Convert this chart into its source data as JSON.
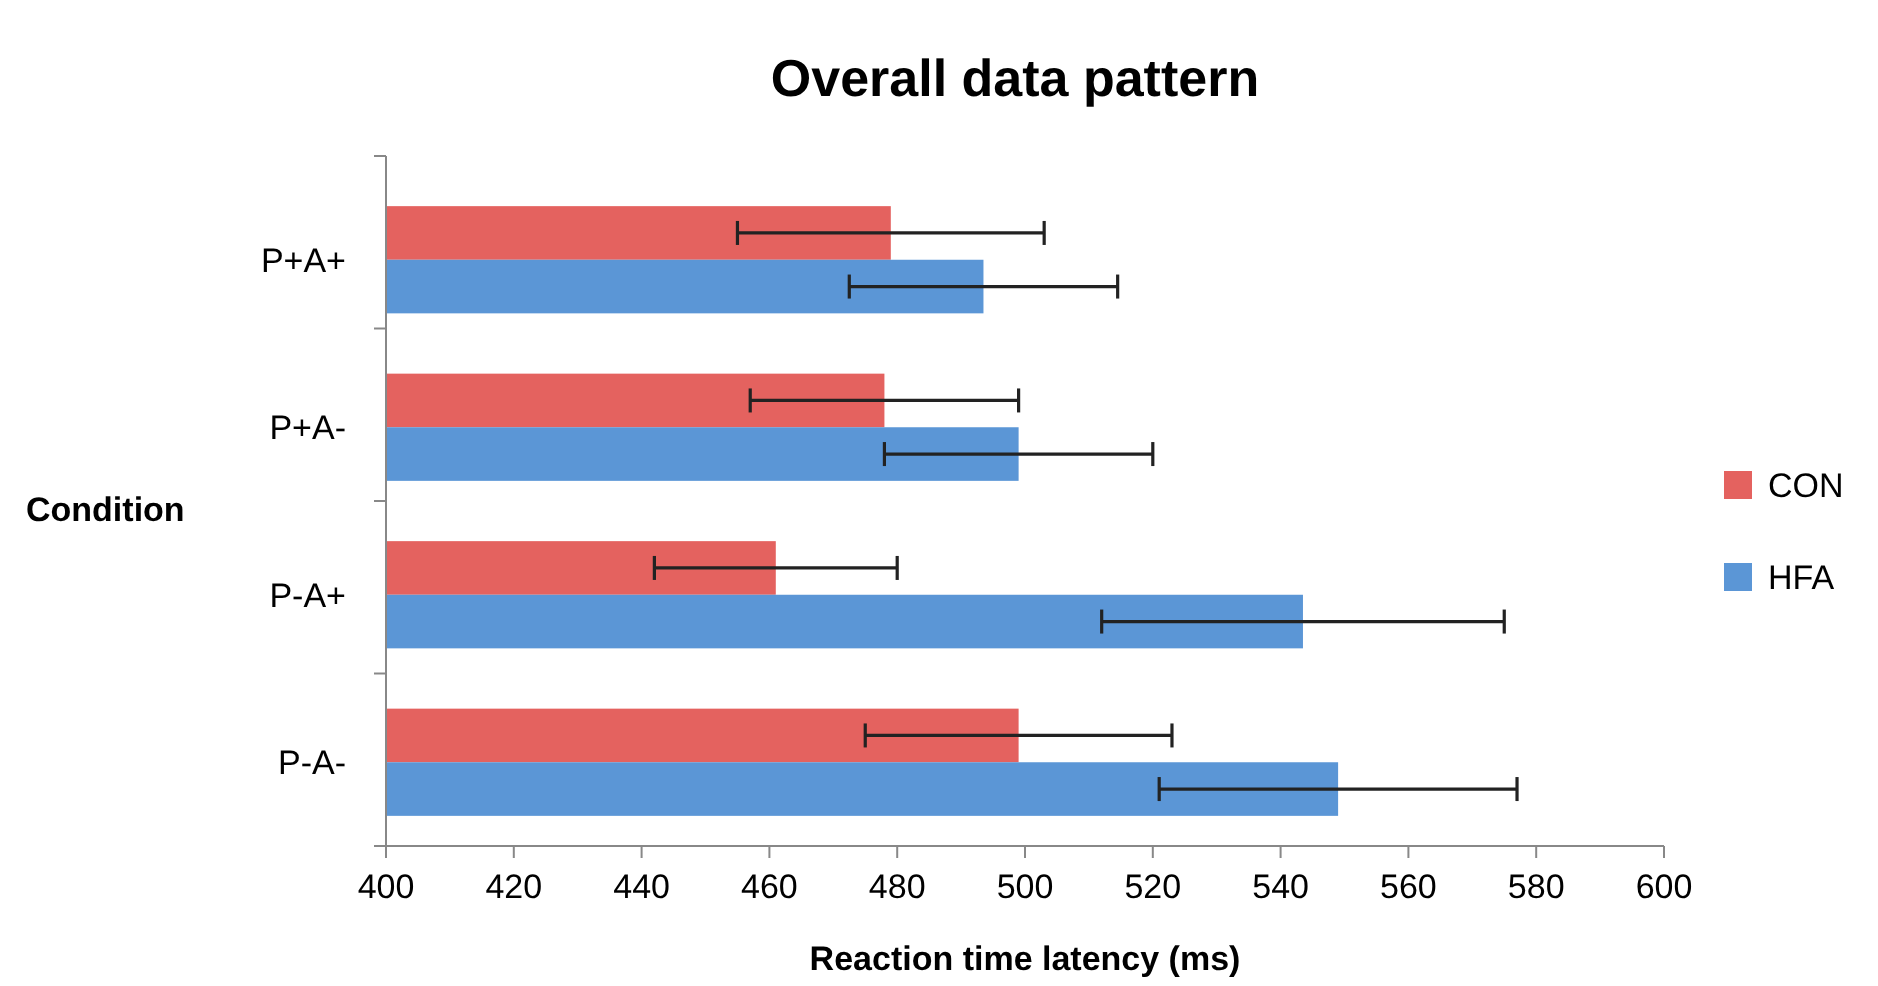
{
  "chart_data": {
    "type": "bar",
    "orientation": "horizontal",
    "title": "Overall data pattern",
    "xlabel": "Reaction time latency (ms)",
    "ylabel": "Condition",
    "categories": [
      "P+A+",
      "P+A-",
      "P-A+",
      "P-A-"
    ],
    "series": [
      {
        "name": "CON",
        "color": "#e4625f",
        "values": [
          479,
          478,
          461,
          499
        ],
        "errors": [
          24,
          21,
          19,
          24
        ]
      },
      {
        "name": "HFA",
        "color": "#5b96d6",
        "values": [
          493.5,
          499,
          543.5,
          549
        ],
        "errors": [
          21,
          21,
          31.5,
          28
        ]
      }
    ],
    "xlim": [
      400,
      600
    ],
    "xticks": [
      400,
      420,
      440,
      460,
      480,
      500,
      520,
      540,
      560,
      580,
      600
    ],
    "legend": "right",
    "grid": false
  }
}
